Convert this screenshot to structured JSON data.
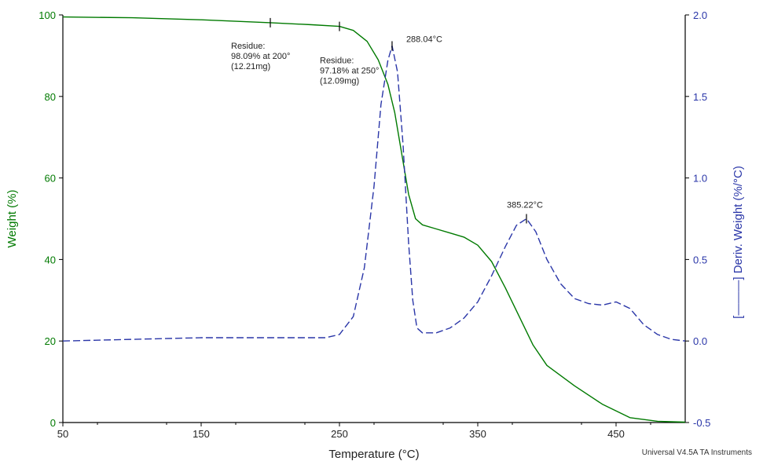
{
  "chart_data": {
    "type": "line",
    "xlabel": "Temperature (°C)",
    "ylabel_left": "Weight (%)",
    "ylabel_right": "[———] Deriv. Weight (%/°C)",
    "xlim": [
      50,
      500
    ],
    "ylim_left": [
      0,
      100
    ],
    "ylim_right": [
      -0.5,
      2.0
    ],
    "x_ticks": [
      50,
      150,
      250,
      350,
      450
    ],
    "y_left_ticks": [
      0,
      20,
      40,
      60,
      80,
      100
    ],
    "y_right_ticks": [
      "-0.5",
      "0.0",
      "0.5",
      "1.0",
      "1.5",
      "2.0"
    ],
    "grid": false,
    "series": [
      {
        "name": "Weight (%)",
        "axis": "left",
        "color": "#007a00",
        "style": "solid",
        "x": [
          50,
          100,
          150,
          200,
          230,
          250,
          260,
          270,
          278,
          285,
          290,
          295,
          300,
          305,
          310,
          320,
          330,
          340,
          350,
          360,
          370,
          380,
          390,
          400,
          420,
          440,
          460,
          480,
          490,
          500
        ],
        "y": [
          99.5,
          99.3,
          98.8,
          98.09,
          97.6,
          97.18,
          96.2,
          93.5,
          89,
          83,
          76,
          66,
          56,
          50,
          48.5,
          47.5,
          46.5,
          45.5,
          43.5,
          39.5,
          33,
          26,
          19,
          14,
          9,
          4.5,
          1.2,
          0.3,
          0.2,
          0.1
        ]
      },
      {
        "name": "Deriv. Weight (%/°C)",
        "axis": "right",
        "color": "#2a36a8",
        "style": "dashed",
        "x": [
          50,
          100,
          150,
          200,
          240,
          250,
          260,
          268,
          275,
          280,
          285,
          288.04,
          292,
          296,
          300,
          303,
          306,
          310,
          320,
          330,
          340,
          350,
          360,
          370,
          378,
          385.22,
          392,
          400,
          410,
          420,
          430,
          440,
          450,
          460,
          470,
          480,
          490,
          500
        ],
        "y": [
          0,
          0.01,
          0.02,
          0.02,
          0.02,
          0.04,
          0.15,
          0.45,
          0.95,
          1.45,
          1.72,
          1.81,
          1.65,
          1.2,
          0.6,
          0.25,
          0.08,
          0.05,
          0.05,
          0.08,
          0.14,
          0.24,
          0.4,
          0.58,
          0.71,
          0.75,
          0.67,
          0.5,
          0.35,
          0.26,
          0.23,
          0.22,
          0.24,
          0.2,
          0.1,
          0.04,
          0.01,
          0
        ]
      }
    ],
    "annotations": [
      {
        "id": "res1",
        "lines": [
          "Residue:",
          "98.09% at 200°",
          "(12.21mg)"
        ],
        "x": 200,
        "y": 98.09,
        "color": "#222222"
      },
      {
        "id": "res2",
        "lines": [
          "Residue:",
          "97.18% at 250°",
          "(12.09mg)"
        ],
        "x": 250,
        "y": 97.18,
        "color": "#222222"
      },
      {
        "id": "peak1",
        "text": "288.04°C",
        "x": 288.04,
        "y": 1.81,
        "color": "#e0312a"
      },
      {
        "id": "peak2",
        "text": "385.22°C",
        "x": 385.22,
        "y": 0.75,
        "color": "#2a36a8"
      }
    ],
    "footer": "Universal V4.5A TA Instruments"
  }
}
